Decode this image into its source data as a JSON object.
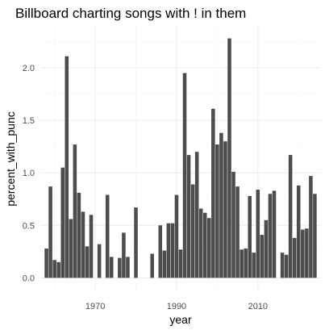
{
  "chart_data": {
    "type": "bar",
    "title": "Billboard charting songs with ! in them",
    "xlabel": "year",
    "ylabel": "percent_with_punc",
    "xlim": [
      1958,
      2024
    ],
    "ylim": [
      0,
      2.4
    ],
    "x_ticks": [
      1970,
      1990,
      2010
    ],
    "y_ticks": [
      0.0,
      0.5,
      1.0,
      1.5,
      2.0
    ],
    "y_tick_labels": [
      "0.0",
      "0.5",
      "1.0",
      "1.5",
      "2.0"
    ],
    "grid": true,
    "legend": "none",
    "bar_color": "#4d4d4d",
    "x": [
      1958,
      1959,
      1960,
      1961,
      1962,
      1963,
      1964,
      1965,
      1966,
      1967,
      1968,
      1969,
      1970,
      1971,
      1972,
      1973,
      1974,
      1975,
      1976,
      1977,
      1978,
      1979,
      1980,
      1981,
      1982,
      1983,
      1984,
      1985,
      1986,
      1987,
      1988,
      1989,
      1990,
      1991,
      1992,
      1993,
      1994,
      1995,
      1996,
      1997,
      1998,
      1999,
      2000,
      2001,
      2002,
      2003,
      2004,
      2005,
      2006,
      2007,
      2008,
      2009,
      2010,
      2011,
      2012,
      2013,
      2014,
      2015,
      2016,
      2017,
      2018,
      2019,
      2020,
      2021,
      2022,
      2023,
      2024
    ],
    "values": [
      0.28,
      0.87,
      0.17,
      0.15,
      1.05,
      2.11,
      0.56,
      1.27,
      0.81,
      0.63,
      0.3,
      0.6,
      0,
      0.32,
      0,
      0.79,
      0.2,
      0,
      0.19,
      0.43,
      0.2,
      0,
      0.67,
      0,
      0,
      0,
      0.23,
      0,
      0.5,
      0.26,
      0.52,
      0.52,
      0.79,
      0.27,
      1.95,
      1.17,
      0.89,
      1.2,
      0.66,
      0.62,
      0.57,
      1.61,
      1.27,
      1.38,
      1.3,
      2.28,
      1.01,
      0.87,
      0.27,
      0.28,
      0.78,
      0.24,
      0.84,
      0.41,
      0.55,
      0.8,
      0.83,
      0,
      0.24,
      0.22,
      1.17,
      0.38,
      0.88,
      0.46,
      0.47,
      0.97,
      0.8
    ]
  }
}
